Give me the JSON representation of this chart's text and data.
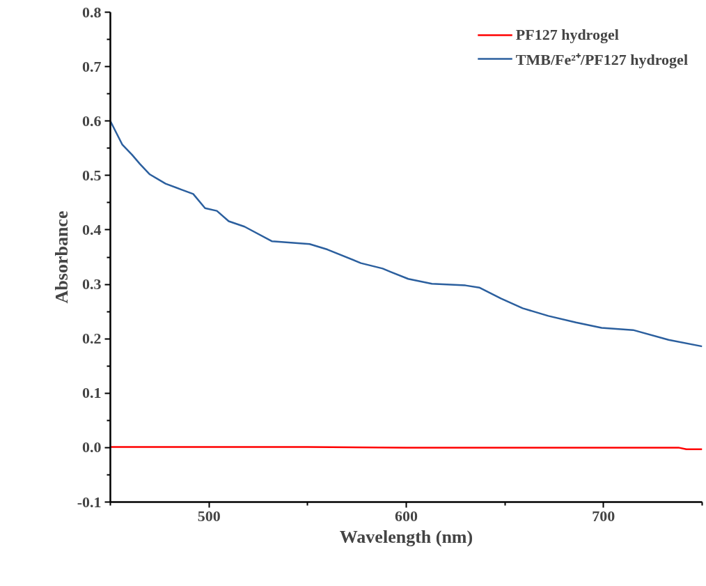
{
  "chart_data": {
    "type": "line",
    "xlabel": "Wavelength (nm)",
    "ylabel": "Absorbance",
    "xlim": [
      450,
      750
    ],
    "xticks": [
      500,
      600,
      700
    ],
    "ylim": [
      -0.1,
      0.8
    ],
    "yticks": [
      -0.1,
      {
        "value": 0,
        "label": "0.0"
      },
      0.1,
      0.2,
      0.3,
      0.4,
      0.5,
      0.6,
      0.7,
      0.8
    ],
    "grid": false,
    "legend": "top right",
    "marker": "none",
    "line_style": "solid",
    "series": [
      {
        "name": "PF127 hydrogel",
        "color": "#ff0000",
        "x": [
          450,
          500,
          550,
          600,
          650,
          700,
          738,
          742,
          750
        ],
        "values": [
          0.001,
          0.001,
          0.001,
          0.0,
          0.0,
          0.0,
          0.0,
          -0.003,
          -0.003
        ]
      },
      {
        "name": "TMB/Fe²⁺/PF127 hydrogel",
        "color": "#2b5f9e",
        "x": [
          450,
          456,
          461,
          465,
          470,
          478,
          486,
          492,
          498,
          504,
          510,
          518,
          532,
          551,
          560,
          577,
          588,
          592,
          601,
          613,
          630,
          637,
          648,
          659,
          672,
          686,
          699,
          715,
          733,
          750
        ],
        "values": [
          0.6,
          0.557,
          0.538,
          0.521,
          0.502,
          0.485,
          0.474,
          0.466,
          0.44,
          0.435,
          0.416,
          0.406,
          0.379,
          0.374,
          0.364,
          0.339,
          0.329,
          0.323,
          0.31,
          0.301,
          0.298,
          0.294,
          0.274,
          0.256,
          0.242,
          0.23,
          0.22,
          0.216,
          0.198,
          0.186
        ]
      }
    ]
  }
}
